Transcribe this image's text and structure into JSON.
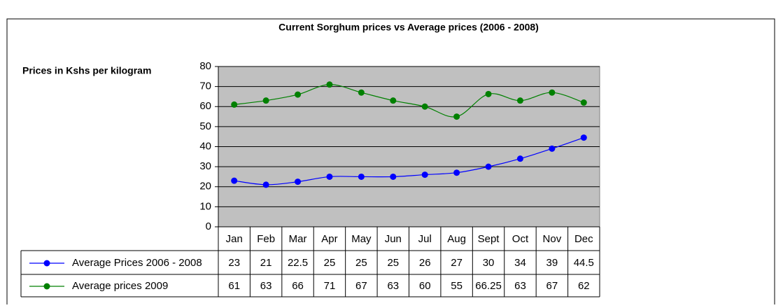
{
  "chart_data": {
    "type": "line",
    "title": "Current Sorghum prices vs Average prices (2006 - 2008)",
    "y_label": "Prices in Kshs per kilogram",
    "categories": [
      "Jan",
      "Feb",
      "Mar",
      "Apr",
      "May",
      "Jun",
      "Jul",
      "Aug",
      "Sept",
      "Oct",
      "Nov",
      "Dec"
    ],
    "series": [
      {
        "name": "Average Prices 2006 - 2008",
        "color": "#0000ff",
        "values": [
          23,
          21,
          22.5,
          25,
          25,
          25,
          26,
          27,
          30,
          34,
          39,
          44.5
        ]
      },
      {
        "name": "Average prices 2009",
        "color": "#008000",
        "values": [
          61,
          63,
          66,
          71,
          67,
          63,
          60,
          55,
          66.25,
          63,
          67,
          62
        ]
      }
    ],
    "ylim": [
      0,
      80
    ],
    "yticks": [
      0,
      10,
      20,
      30,
      40,
      50,
      60,
      70,
      80
    ],
    "grid": true,
    "smooth": true,
    "data_table": true,
    "plot_background": "#c0c0c0"
  }
}
